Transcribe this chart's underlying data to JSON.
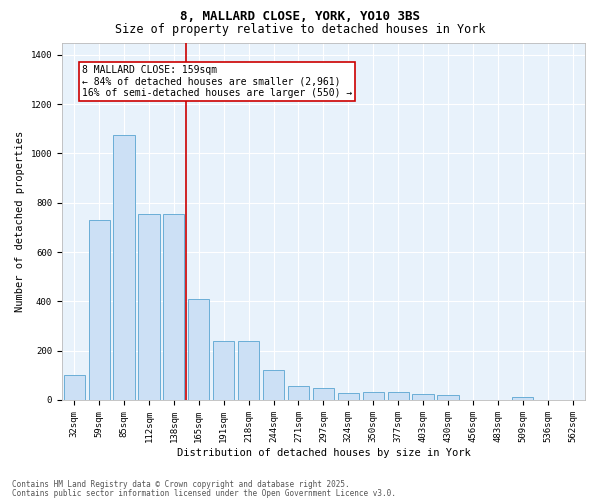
{
  "title1": "8, MALLARD CLOSE, YORK, YO10 3BS",
  "title2": "Size of property relative to detached houses in York",
  "xlabel": "Distribution of detached houses by size in York",
  "ylabel": "Number of detached properties",
  "categories": [
    "32sqm",
    "59sqm",
    "85sqm",
    "112sqm",
    "138sqm",
    "165sqm",
    "191sqm",
    "218sqm",
    "244sqm",
    "271sqm",
    "297sqm",
    "324sqm",
    "350sqm",
    "377sqm",
    "403sqm",
    "430sqm",
    "456sqm",
    "483sqm",
    "509sqm",
    "536sqm",
    "562sqm"
  ],
  "values": [
    100,
    730,
    1075,
    755,
    755,
    410,
    238,
    238,
    120,
    55,
    50,
    30,
    32,
    32,
    24,
    22,
    0,
    0,
    12,
    0,
    0
  ],
  "bar_color": "#cce0f5",
  "bar_edge_color": "#6aaed6",
  "vline_position": 4.5,
  "vline_color": "#cc0000",
  "annotation_text": "8 MALLARD CLOSE: 159sqm\n← 84% of detached houses are smaller (2,961)\n16% of semi-detached houses are larger (550) →",
  "annotation_box_color": "#cc0000",
  "ylim": [
    0,
    1450
  ],
  "yticks": [
    0,
    200,
    400,
    600,
    800,
    1000,
    1200,
    1400
  ],
  "bg_color": "#e8f2fb",
  "footer1": "Contains HM Land Registry data © Crown copyright and database right 2025.",
  "footer2": "Contains public sector information licensed under the Open Government Licence v3.0.",
  "title_fontsize": 9,
  "subtitle_fontsize": 8.5,
  "tick_fontsize": 6.5,
  "ylabel_fontsize": 7.5,
  "xlabel_fontsize": 7.5,
  "annotation_fontsize": 7,
  "footer_fontsize": 5.5
}
